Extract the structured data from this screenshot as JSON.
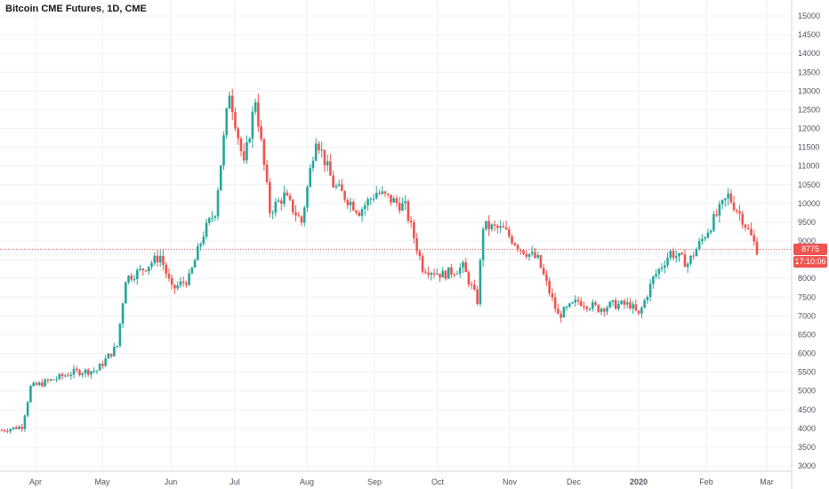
{
  "header": {
    "symbol": "Bitcoin CME Futures, 1D, CME"
  },
  "price_tag": {
    "last_price": "8775",
    "countdown": "17:10:06"
  },
  "colors": {
    "up": "#26a69a",
    "down": "#ef5350",
    "grid": "#eef0f4",
    "axis_text": "#50535e",
    "price_line": "#ef5350"
  },
  "chart_data": {
    "type": "candlestick",
    "ylim": [
      2700,
      15300
    ],
    "y_ticks": [
      3000,
      3500,
      4000,
      4500,
      5000,
      5500,
      6000,
      6500,
      7000,
      7500,
      8000,
      8500,
      9000,
      9500,
      10000,
      10500,
      11000,
      11500,
      12000,
      12500,
      13000,
      13500,
      14000,
      14500,
      15000
    ],
    "x_ticks": [
      "Apr",
      "May",
      "Jun",
      "Jul",
      "Aug",
      "Sep",
      "Oct",
      "Nov",
      "Dec",
      "2020",
      "Feb",
      "Mar"
    ],
    "grid": true,
    "last_price": 8775,
    "series_keyframes": [
      {
        "t": 0,
        "v": 3950
      },
      {
        "t": 7,
        "v": 4050
      },
      {
        "t": 10,
        "v": 5100
      },
      {
        "t": 14,
        "v": 5200
      },
      {
        "t": 25,
        "v": 5500
      },
      {
        "t": 33,
        "v": 5550
      },
      {
        "t": 40,
        "v": 6200
      },
      {
        "t": 43,
        "v": 8000
      },
      {
        "t": 48,
        "v": 8200
      },
      {
        "t": 55,
        "v": 8600
      },
      {
        "t": 59,
        "v": 7700
      },
      {
        "t": 65,
        "v": 8000
      },
      {
        "t": 70,
        "v": 9200
      },
      {
        "t": 74,
        "v": 9800
      },
      {
        "t": 79,
        "v": 13000
      },
      {
        "t": 84,
        "v": 11000
      },
      {
        "t": 88,
        "v": 12800
      },
      {
        "t": 93,
        "v": 9800
      },
      {
        "t": 98,
        "v": 10200
      },
      {
        "t": 104,
        "v": 9500
      },
      {
        "t": 109,
        "v": 11800
      },
      {
        "t": 115,
        "v": 10500
      },
      {
        "t": 124,
        "v": 9800
      },
      {
        "t": 130,
        "v": 10300
      },
      {
        "t": 140,
        "v": 9900
      },
      {
        "t": 146,
        "v": 8300
      },
      {
        "t": 153,
        "v": 8100
      },
      {
        "t": 160,
        "v": 8300
      },
      {
        "t": 165,
        "v": 7400
      },
      {
        "t": 167,
        "v": 9400
      },
      {
        "t": 174,
        "v": 9300
      },
      {
        "t": 180,
        "v": 8800
      },
      {
        "t": 186,
        "v": 8500
      },
      {
        "t": 193,
        "v": 7000
      },
      {
        "t": 200,
        "v": 7400
      },
      {
        "t": 207,
        "v": 7200
      },
      {
        "t": 212,
        "v": 7300
      },
      {
        "t": 218,
        "v": 7300
      },
      {
        "t": 221,
        "v": 7000
      },
      {
        "t": 226,
        "v": 8000
      },
      {
        "t": 232,
        "v": 8700
      },
      {
        "t": 238,
        "v": 8400
      },
      {
        "t": 245,
        "v": 9300
      },
      {
        "t": 252,
        "v": 10200
      },
      {
        "t": 257,
        "v": 9600
      },
      {
        "t": 262,
        "v": 8780
      }
    ]
  }
}
